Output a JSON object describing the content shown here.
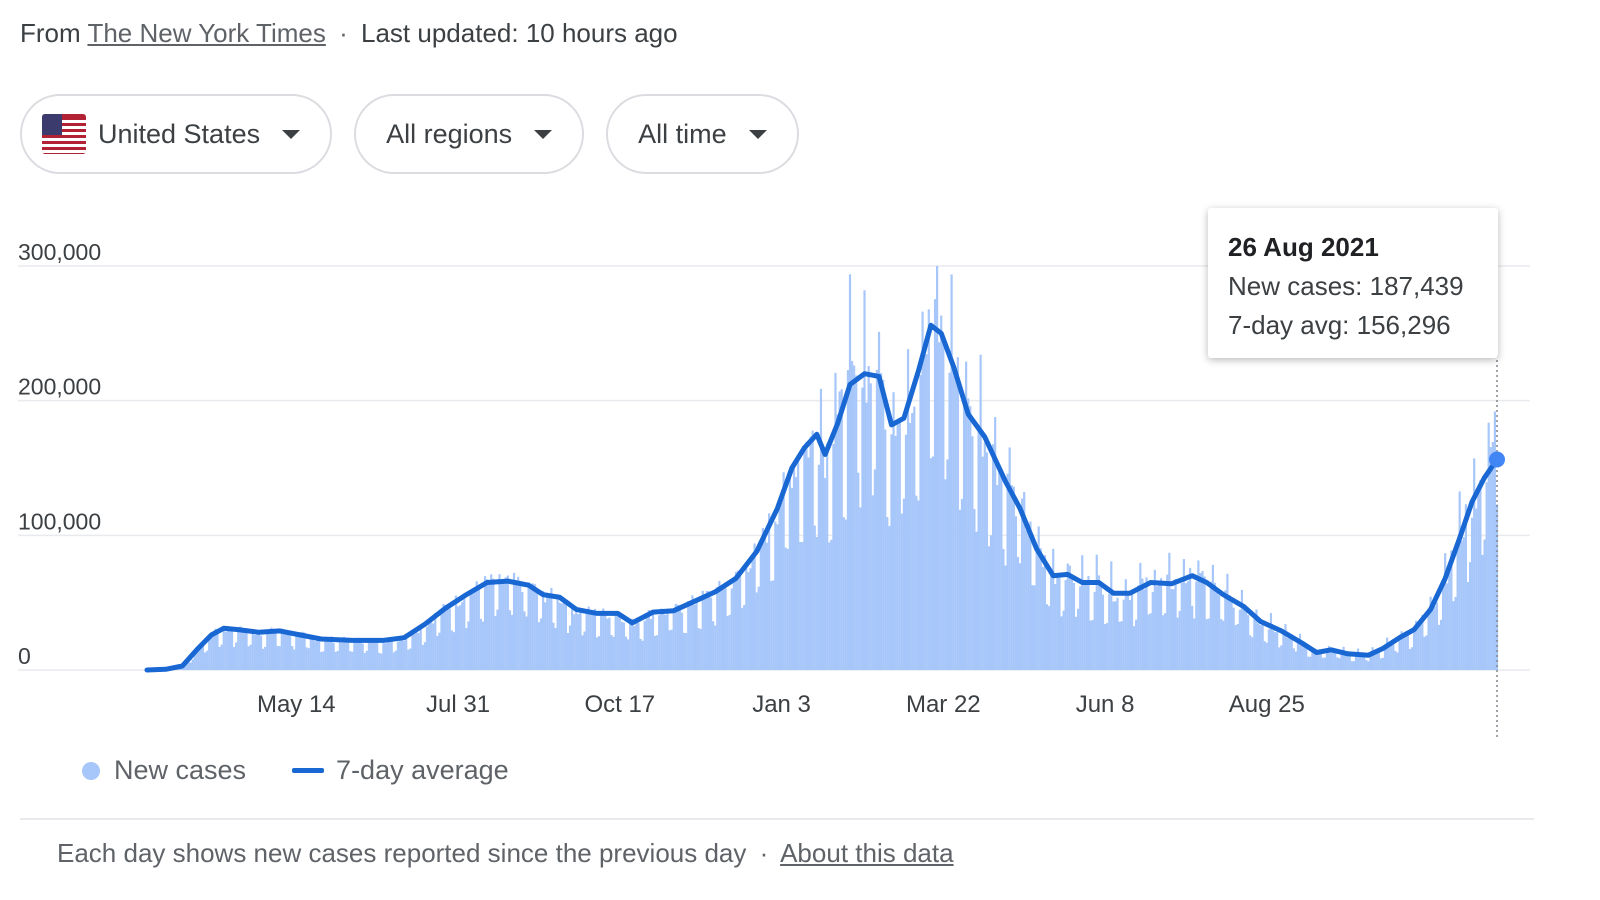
{
  "header": {
    "from_prefix": "From",
    "source_link": "The New York Times",
    "separator": "·",
    "updated": "Last updated: 10 hours ago"
  },
  "filters": {
    "country": {
      "label": "United States",
      "icon": "us-flag-icon"
    },
    "region": {
      "label": "All regions"
    },
    "time": {
      "label": "All time"
    }
  },
  "tooltip": {
    "date": "26 Aug 2021",
    "new_cases": "New cases: 187,439",
    "avg": "7-day avg: 156,296"
  },
  "legend": {
    "new_cases": "New cases",
    "avg": "7-day average"
  },
  "footer": {
    "note": "Each day shows new cases reported since the previous day",
    "separator": "·",
    "link": "About this data"
  },
  "colors": {
    "bars": "#a7c7fa",
    "line": "#1967d2",
    "grid": "#e8eaed",
    "axis_text": "#3c4043"
  },
  "chart_data": {
    "type": "bar",
    "ylim": [
      0,
      300000
    ],
    "yticks": [
      0,
      100000,
      200000,
      300000
    ],
    "ytick_labels": [
      "0",
      "100,000",
      "200,000",
      "300,000"
    ],
    "xticks": [
      {
        "label": "May 14",
        "day": 113
      },
      {
        "label": "Jul 31",
        "day": 191
      },
      {
        "label": "Oct 17",
        "day": 269
      },
      {
        "label": "Jan 3",
        "day": 347
      },
      {
        "label": "Mar 22",
        "day": 425
      },
      {
        "label": "Jun 8",
        "day": 503
      },
      {
        "label": "Aug 25",
        "day": 581
      }
    ],
    "x_range_days": [
      41,
      582
    ],
    "series": [
      {
        "name": "7-day average",
        "type": "line",
        "points": [
          [
            41,
            0
          ],
          [
            50,
            500
          ],
          [
            58,
            3000
          ],
          [
            65,
            15000
          ],
          [
            72,
            26000
          ],
          [
            78,
            31000
          ],
          [
            85,
            30000
          ],
          [
            95,
            28000
          ],
          [
            105,
            29000
          ],
          [
            115,
            26000
          ],
          [
            125,
            23000
          ],
          [
            140,
            22000
          ],
          [
            155,
            22000
          ],
          [
            165,
            24000
          ],
          [
            175,
            34000
          ],
          [
            185,
            46000
          ],
          [
            195,
            56000
          ],
          [
            205,
            65000
          ],
          [
            215,
            66000
          ],
          [
            225,
            63000
          ],
          [
            232,
            56000
          ],
          [
            240,
            54000
          ],
          [
            248,
            45000
          ],
          [
            258,
            42000
          ],
          [
            268,
            42000
          ],
          [
            275,
            35000
          ],
          [
            285,
            43000
          ],
          [
            295,
            44000
          ],
          [
            305,
            51000
          ],
          [
            315,
            58000
          ],
          [
            325,
            68000
          ],
          [
            335,
            88000
          ],
          [
            345,
            120000
          ],
          [
            352,
            150000
          ],
          [
            358,
            165000
          ],
          [
            364,
            175000
          ],
          [
            368,
            160000
          ],
          [
            374,
            183000
          ],
          [
            380,
            212000
          ],
          [
            387,
            220000
          ],
          [
            394,
            218000
          ],
          [
            400,
            182000
          ],
          [
            406,
            187000
          ],
          [
            413,
            222000
          ],
          [
            419,
            256000
          ],
          [
            424,
            250000
          ],
          [
            430,
            225000
          ],
          [
            437,
            190000
          ],
          [
            445,
            173000
          ],
          [
            455,
            140000
          ],
          [
            462,
            120000
          ],
          [
            470,
            90000
          ],
          [
            478,
            70000
          ],
          [
            485,
            71000
          ],
          [
            492,
            65000
          ],
          [
            500,
            65000
          ],
          [
            507,
            57000
          ],
          [
            515,
            57000
          ],
          [
            525,
            65000
          ],
          [
            535,
            64000
          ],
          [
            545,
            70000
          ],
          [
            552,
            65000
          ],
          [
            560,
            56000
          ],
          [
            570,
            47000
          ],
          [
            578,
            36000
          ],
          [
            588,
            29000
          ],
          [
            598,
            20000
          ],
          [
            605,
            13000
          ],
          [
            612,
            15000
          ],
          [
            620,
            12000
          ],
          [
            630,
            11000
          ],
          [
            637,
            16000
          ],
          [
            645,
            24000
          ],
          [
            652,
            30000
          ],
          [
            660,
            45000
          ],
          [
            667,
            68000
          ],
          [
            674,
            98000
          ],
          [
            680,
            125000
          ],
          [
            686,
            143000
          ],
          [
            692,
            156296
          ]
        ]
      },
      {
        "name": "New cases",
        "type": "bar",
        "points": [
          [
            41,
            0
          ],
          [
            58,
            3000
          ],
          [
            65,
            15000
          ],
          [
            72,
            26000
          ],
          [
            78,
            31000
          ],
          [
            85,
            30000
          ],
          [
            95,
            28000
          ],
          [
            105,
            29000
          ],
          [
            115,
            26000
          ],
          [
            125,
            23000
          ],
          [
            140,
            22000
          ],
          [
            155,
            22000
          ],
          [
            165,
            24000
          ],
          [
            175,
            34000
          ],
          [
            185,
            46000
          ],
          [
            195,
            56000
          ],
          [
            205,
            65000
          ],
          [
            215,
            66000
          ],
          [
            225,
            63000
          ],
          [
            232,
            56000
          ],
          [
            240,
            54000
          ],
          [
            248,
            45000
          ],
          [
            258,
            42000
          ],
          [
            268,
            42000
          ],
          [
            275,
            35000
          ],
          [
            285,
            43000
          ],
          [
            295,
            44000
          ],
          [
            305,
            51000
          ],
          [
            315,
            58000
          ],
          [
            325,
            68000
          ],
          [
            335,
            88000
          ],
          [
            345,
            120000
          ],
          [
            352,
            150000
          ],
          [
            358,
            165000
          ],
          [
            364,
            175000
          ],
          [
            368,
            160000
          ],
          [
            374,
            183000
          ],
          [
            380,
            212000
          ],
          [
            387,
            220000
          ],
          [
            394,
            218000
          ],
          [
            400,
            182000
          ],
          [
            406,
            187000
          ],
          [
            413,
            222000
          ],
          [
            419,
            256000
          ],
          [
            424,
            250000
          ],
          [
            430,
            225000
          ],
          [
            437,
            190000
          ],
          [
            445,
            173000
          ],
          [
            455,
            140000
          ],
          [
            462,
            120000
          ],
          [
            470,
            90000
          ],
          [
            478,
            70000
          ],
          [
            485,
            71000
          ],
          [
            492,
            65000
          ],
          [
            500,
            65000
          ],
          [
            507,
            57000
          ],
          [
            515,
            57000
          ],
          [
            525,
            65000
          ],
          [
            535,
            64000
          ],
          [
            545,
            70000
          ],
          [
            552,
            65000
          ],
          [
            560,
            56000
          ],
          [
            570,
            47000
          ],
          [
            578,
            36000
          ],
          [
            588,
            29000
          ],
          [
            598,
            20000
          ],
          [
            605,
            13000
          ],
          [
            612,
            15000
          ],
          [
            620,
            12000
          ],
          [
            630,
            11000
          ],
          [
            637,
            16000
          ],
          [
            645,
            24000
          ],
          [
            652,
            30000
          ],
          [
            660,
            45000
          ],
          [
            667,
            68000
          ],
          [
            674,
            98000
          ],
          [
            680,
            125000
          ],
          [
            686,
            143000
          ],
          [
            692,
            187439
          ]
        ]
      }
    ]
  }
}
